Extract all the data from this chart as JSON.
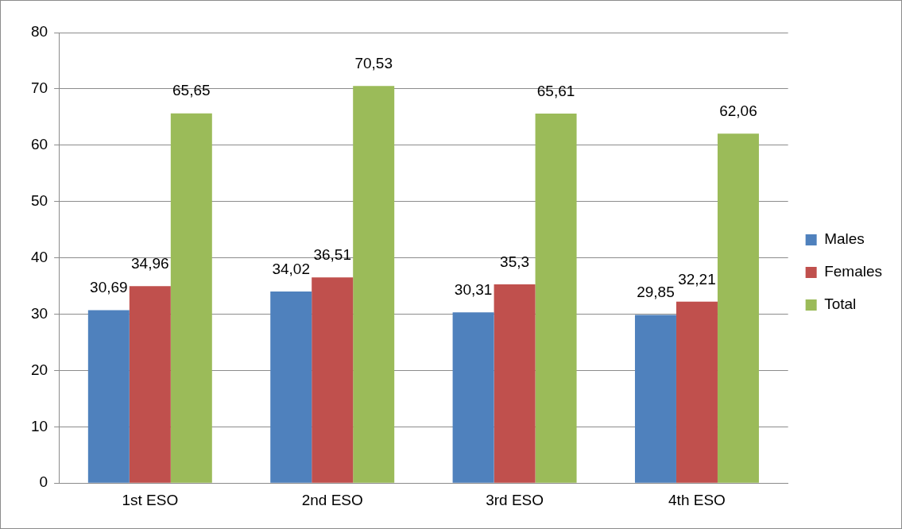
{
  "chart_data": {
    "type": "bar",
    "categories": [
      "1st ESO",
      "2nd ESO",
      "3rd ESO",
      "4th ESO"
    ],
    "series": [
      {
        "name": "Males",
        "color": "#4f81bd",
        "values": [
          30.69,
          34.02,
          30.31,
          29.85
        ],
        "value_labels": [
          "30,69",
          "34,02",
          "30,31",
          "29,85"
        ]
      },
      {
        "name": "Females",
        "color": "#c0504d",
        "values": [
          34.96,
          36.51,
          35.3,
          32.21
        ],
        "value_labels": [
          "34,96",
          "36,51",
          "35,3",
          "32,21"
        ]
      },
      {
        "name": "Total",
        "color": "#9bbb59",
        "values": [
          65.65,
          70.53,
          65.61,
          62.06
        ],
        "value_labels": [
          "65,65",
          "70,53",
          "65,61",
          "62,06"
        ]
      }
    ],
    "ylim": [
      0,
      80
    ],
    "yticks": [
      0,
      10,
      20,
      30,
      40,
      50,
      60,
      70,
      80
    ],
    "grid": "y",
    "legend": "right"
  }
}
